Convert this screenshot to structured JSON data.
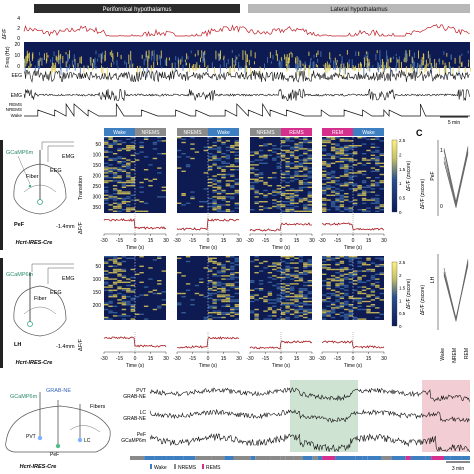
{
  "panel_a": {
    "header_left": "Perifornical hypothalamus",
    "header_right": "Lateral hypothalamus",
    "rows": [
      "ΔF/F",
      "Freq (Hz)",
      "EEG",
      "EMG",
      "REMS",
      "NREMS",
      "Wake"
    ],
    "ticks_dff": [
      "4",
      "2",
      "0"
    ],
    "ticks_freq": [
      "20",
      "10",
      "0"
    ],
    "scale_bar": "5 min"
  },
  "panel_b": {
    "mouse_line": "Hcrt-IRES-Cre",
    "top_schematic": {
      "sensor": "GCaMP6m",
      "fiber": "Fiber",
      "eeg": "EEG",
      "emg": "EMG",
      "region": "PeF",
      "coord": "-1.4mm"
    },
    "bottom_schematic": {
      "sensor": "GCaMP6m",
      "fiber": "Fiber",
      "eeg": "EEG",
      "emg": "EMG",
      "region": "LH",
      "coord": "-1.4mm"
    },
    "transitions": [
      {
        "from": "Wake",
        "to": "NREMS",
        "from_color": "#3d7fc1",
        "to_color": "#8a8a8a"
      },
      {
        "from": "NREMS",
        "to": "Wake",
        "from_color": "#8a8a8a",
        "to_color": "#3d7fc1"
      },
      {
        "from": "NREMS",
        "to": "REMS",
        "from_color": "#8a8a8a",
        "to_color": "#d6308f"
      },
      {
        "from": "REM",
        "to": "Wake",
        "from_color": "#d6308f",
        "to_color": "#3d7fc1"
      }
    ],
    "y_label_heat": "Transition",
    "y_ticks_top": [
      "50",
      "100",
      "150",
      "200",
      "250",
      "300",
      "350"
    ],
    "y_ticks_bottom": [
      "50",
      "100",
      "150",
      "200"
    ],
    "colorbar_label": "ΔF/F (zscore)",
    "colorbar_ticks": [
      "2.5",
      "2",
      "1.5",
      "1",
      "0.5",
      "0"
    ],
    "trace_ylabel": "ΔF/F",
    "trace_yticks": [
      "1",
      "0"
    ],
    "x_ticks": [
      "-30",
      "-15",
      "0",
      "15",
      "30"
    ],
    "x_label": "Time (s)"
  },
  "panel_c": {
    "letter": "C",
    "top_ylabel": "ΔF/F (zscore)",
    "top_region": "PeF",
    "bottom_ylabel": "ΔF/F (zscore)",
    "bottom_region": "LH",
    "y_ticks": [
      "1",
      "0"
    ],
    "categories": [
      "Wake",
      "NREM",
      "REM"
    ]
  },
  "panel_d": {
    "mouse_line": "Hcrt-IRES-Cre",
    "sensor1": "GCaMP6m",
    "sensor2": "GRAB-NE",
    "fibers": "Fibers",
    "pvt": "PVT",
    "lc": "LC",
    "pef": "PeF",
    "traces": [
      {
        "line1": "PVT",
        "line2": "GRAB-NE"
      },
      {
        "line1": "LC",
        "line2": "GRAB-NE"
      },
      {
        "line1": "PeF",
        "line2": "GCaMP6m"
      }
    ],
    "legend": [
      "Wake",
      "NREMS",
      "REMS"
    ],
    "scale_bar": "3 min",
    "state_colors": {
      "Wake": "#3d7fc1",
      "NREMS": "#8a8a8a",
      "REMS": "#d6308f",
      "nrem_shade": "#cfe3d2",
      "rem_shade": "#f2cdd3"
    }
  }
}
